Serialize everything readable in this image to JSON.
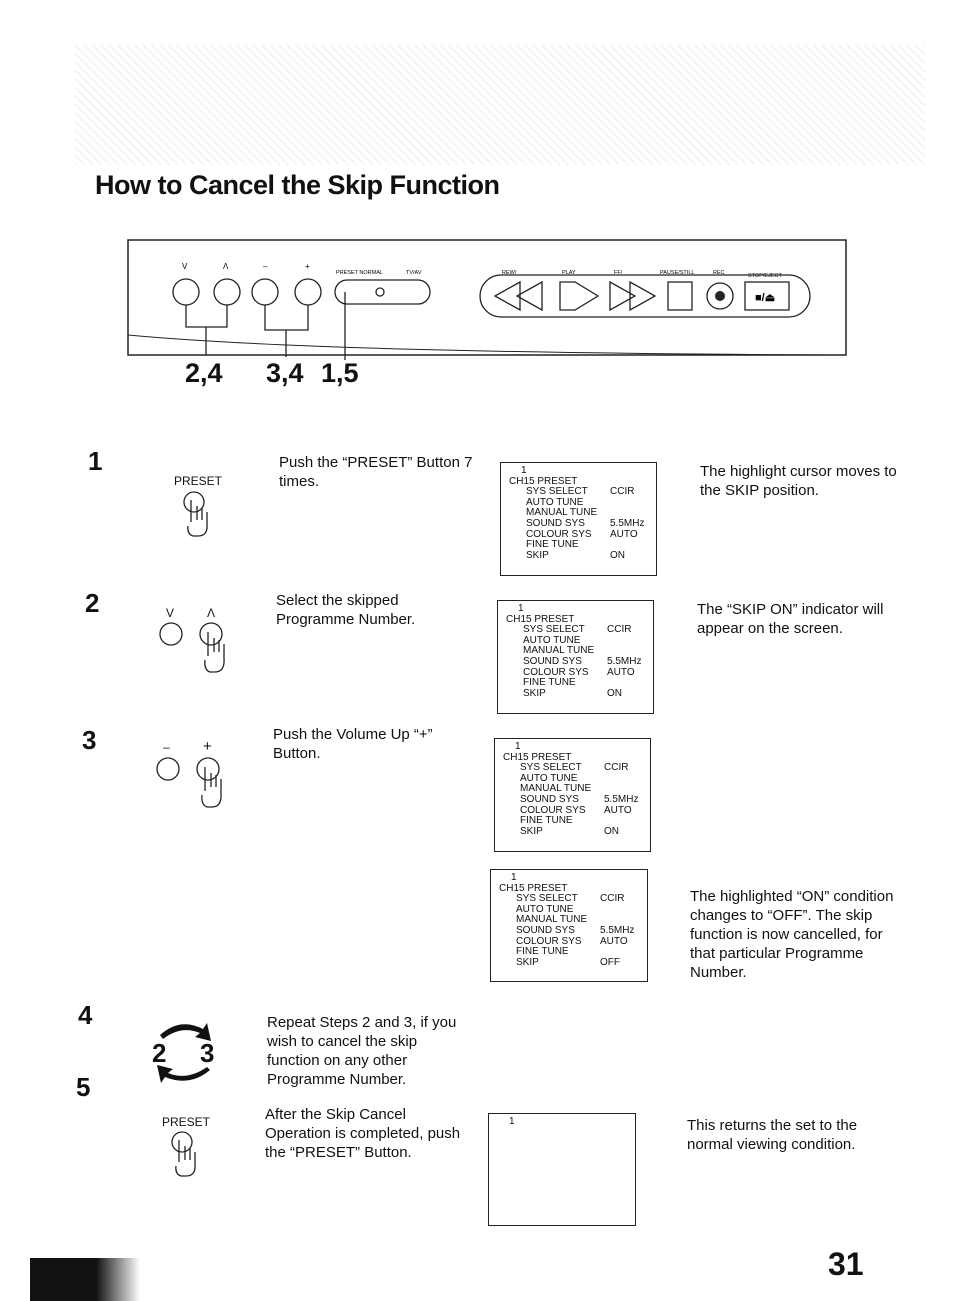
{
  "title": "How to Cancel the Skip Function",
  "panel": {
    "labels": [
      "V",
      "Λ",
      "–",
      "+",
      "PRESET NORMAL",
      "TV/AV",
      "REW/",
      "PLAY",
      "FF/",
      "PAUSE/STILL",
      "REC",
      "STOP/EJECT"
    ],
    "eject_icon": "■/⏏",
    "callouts": [
      "2,4",
      "3,4",
      "1,5"
    ]
  },
  "steps": [
    {
      "number": "1",
      "buttons": [
        "PRESET"
      ],
      "instruction": "Push the “PRESET” Button 7 times.",
      "panels": [
        {
          "screen": {
            "first": "1",
            "header": "CH15  PRESET",
            "rows": [
              {
                "label": "SYS SELECT",
                "value": "CCIR"
              },
              {
                "label": "AUTO TUNE"
              },
              {
                "label": "MANUAL TUNE"
              },
              {
                "label": "SOUND SYS",
                "value": "5.5MHz"
              },
              {
                "label": "COLOUR SYS",
                "value": "AUTO"
              },
              {
                "label": "FINE TUNE"
              },
              {
                "label": "SKIP",
                "value": "ON"
              }
            ]
          },
          "note": "The highlight cursor moves to the SKIP position."
        }
      ]
    },
    {
      "number": "2",
      "buttons": [
        "V",
        "Λ"
      ],
      "instruction": "Select the skipped Programme Number.",
      "panels": [
        {
          "screen": {
            "first": "1",
            "header": "CH15  PRESET",
            "rows": [
              {
                "label": "SYS SELECT",
                "value": "CCIR"
              },
              {
                "label": "AUTO TUNE"
              },
              {
                "label": "MANUAL TUNE"
              },
              {
                "label": "SOUND SYS",
                "value": "5.5MHz"
              },
              {
                "label": "COLOUR SYS",
                "value": "AUTO"
              },
              {
                "label": "FINE TUNE"
              },
              {
                "label": "SKIP",
                "value": "ON"
              }
            ]
          },
          "note": "The “SKIP ON” indicator will appear on the screen."
        }
      ]
    },
    {
      "number": "3",
      "buttons": [
        "–",
        "+"
      ],
      "instruction": "Push the Volume Up “+” Button.",
      "panels": [
        {
          "screen": {
            "first": "1",
            "header": "CH15  PRESET",
            "rows": [
              {
                "label": "SYS SELECT",
                "value": "CCIR"
              },
              {
                "label": "AUTO TUNE"
              },
              {
                "label": "MANUAL TUNE"
              },
              {
                "label": "SOUND SYS",
                "value": "5.5MHz"
              },
              {
                "label": "COLOUR SYS",
                "value": "AUTO"
              },
              {
                "label": "FINE TUNE"
              },
              {
                "label": "SKIP",
                "value": "ON"
              }
            ]
          }
        },
        {
          "screen": {
            "first": "1",
            "header": "CH15  PRESET",
            "rows": [
              {
                "label": "SYS SELECT",
                "value": "CCIR"
              },
              {
                "label": "AUTO TUNE"
              },
              {
                "label": "MANUAL TUNE"
              },
              {
                "label": "SOUND SYS",
                "value": "5.5MHz"
              },
              {
                "label": "COLOUR SYS",
                "value": "AUTO"
              },
              {
                "label": "FINE TUNE"
              },
              {
                "label": "SKIP",
                "value": "OFF"
              }
            ]
          },
          "note": "The highlighted “ON” condition changes to “OFF”. The skip function is now cancelled, for that particular Programme Number."
        }
      ]
    },
    {
      "number": "4",
      "buttons": [
        "2",
        "3"
      ],
      "instruction": "Repeat Steps 2 and 3, if you wish to cancel the skip function on any other Programme Number."
    },
    {
      "number": "5",
      "buttons": [
        "PRESET"
      ],
      "instruction": "After the Skip Cancel Operation is completed, push the “PRESET” Button.",
      "panels": [
        {
          "screen": {
            "first": "1"
          },
          "note": "This returns the set to the normal viewing condition."
        }
      ]
    }
  ],
  "page_number": "31"
}
